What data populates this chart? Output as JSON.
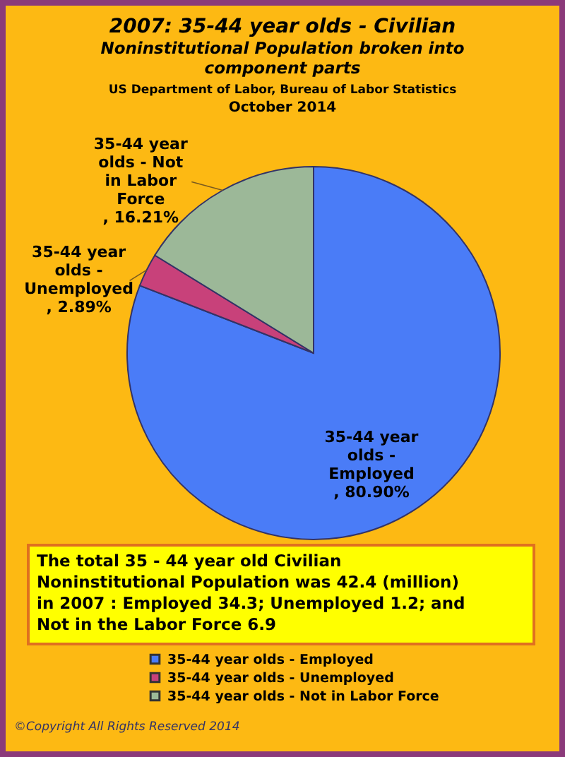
{
  "chart_data": {
    "type": "pie",
    "title": "2007: 35-44 year olds - Civilian Noninstitutional Population broken into component parts",
    "subtitle": "US Department of Labor, Bureau of Labor Statistics",
    "categories": [
      "35-44 year olds - Employed",
      "35-44 year olds - Unemployed",
      "35-44 year olds - Not in Labor Force"
    ],
    "values": [
      80.9,
      2.89,
      16.21
    ],
    "colors": [
      "#4a7cf7",
      "#c8417a",
      "#9cb898"
    ],
    "value_labels": [
      ", 80.90%",
      ", 2.89%",
      ", 16.21%"
    ],
    "legend": "bottom",
    "annotations": [
      "October 2014",
      "The total  35 - 44 year old Civilian Noninstitutional Population was 42.4 (million) in 2007 :  Employed 34.3; Unemployed 1.2; and Not in the Labor Force 6.9",
      "©Copyright All Rights Reserved 2014"
    ]
  }
}
